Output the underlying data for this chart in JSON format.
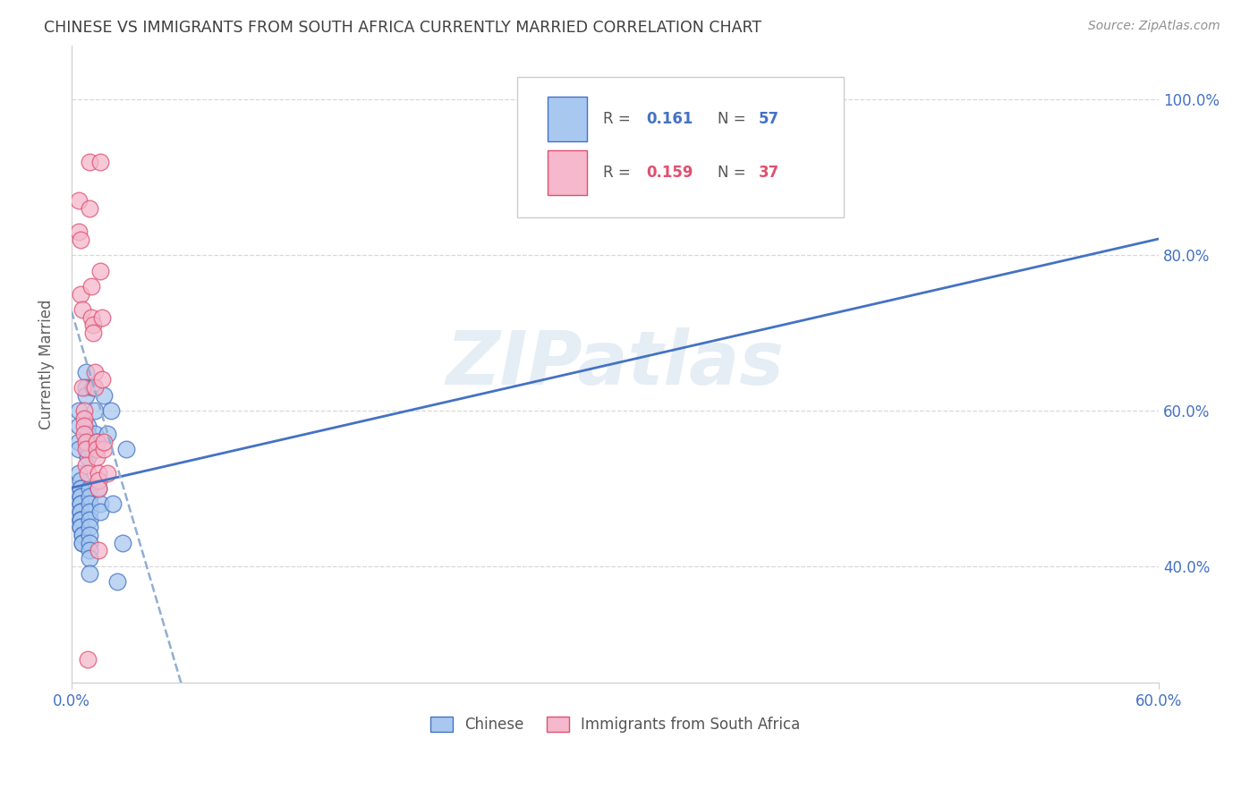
{
  "title": "CHINESE VS IMMIGRANTS FROM SOUTH AFRICA CURRENTLY MARRIED CORRELATION CHART",
  "source": "Source: ZipAtlas.com",
  "ylabel": "Currently Married",
  "xlim": [
    0.0,
    0.6
  ],
  "ylim": [
    0.25,
    1.07
  ],
  "watermark": "ZIPatlas",
  "blue_color": "#a8c8f0",
  "pink_color": "#f5b8cc",
  "blue_line_color": "#4472c4",
  "pink_line_color": "#e05070",
  "blue_reg_color": "#4472c4",
  "dashed_reg_color": "#90aed0",
  "title_color": "#404040",
  "source_color": "#909090",
  "axis_label_color": "#4472c4",
  "grid_color": "#d8d8d8",
  "ytick_vals": [
    0.4,
    0.6,
    0.8,
    1.0
  ],
  "ytick_labels": [
    "40.0%",
    "60.0%",
    "80.0%",
    "100.0%"
  ],
  "xtick_vals": [
    0.0,
    0.6
  ],
  "xtick_labels": [
    "0.0%",
    "60.0%"
  ],
  "blue_scatter": [
    [
      0.004,
      0.56
    ],
    [
      0.004,
      0.6
    ],
    [
      0.004,
      0.58
    ],
    [
      0.004,
      0.55
    ],
    [
      0.004,
      0.52
    ],
    [
      0.005,
      0.51
    ],
    [
      0.005,
      0.5
    ],
    [
      0.005,
      0.5
    ],
    [
      0.005,
      0.49
    ],
    [
      0.005,
      0.49
    ],
    [
      0.005,
      0.48
    ],
    [
      0.005,
      0.48
    ],
    [
      0.005,
      0.47
    ],
    [
      0.005,
      0.47
    ],
    [
      0.005,
      0.46
    ],
    [
      0.005,
      0.46
    ],
    [
      0.005,
      0.46
    ],
    [
      0.005,
      0.45
    ],
    [
      0.005,
      0.45
    ],
    [
      0.006,
      0.44
    ],
    [
      0.006,
      0.44
    ],
    [
      0.006,
      0.43
    ],
    [
      0.006,
      0.43
    ],
    [
      0.008,
      0.65
    ],
    [
      0.008,
      0.63
    ],
    [
      0.008,
      0.62
    ],
    [
      0.009,
      0.58
    ],
    [
      0.009,
      0.57
    ],
    [
      0.009,
      0.56
    ],
    [
      0.009,
      0.55
    ],
    [
      0.009,
      0.54
    ],
    [
      0.01,
      0.5
    ],
    [
      0.01,
      0.49
    ],
    [
      0.01,
      0.48
    ],
    [
      0.01,
      0.47
    ],
    [
      0.01,
      0.46
    ],
    [
      0.01,
      0.45
    ],
    [
      0.01,
      0.44
    ],
    [
      0.01,
      0.43
    ],
    [
      0.01,
      0.42
    ],
    [
      0.01,
      0.41
    ],
    [
      0.01,
      0.39
    ],
    [
      0.012,
      0.63
    ],
    [
      0.013,
      0.6
    ],
    [
      0.013,
      0.57
    ],
    [
      0.014,
      0.56
    ],
    [
      0.014,
      0.55
    ],
    [
      0.015,
      0.5
    ],
    [
      0.016,
      0.48
    ],
    [
      0.016,
      0.47
    ],
    [
      0.018,
      0.62
    ],
    [
      0.02,
      0.57
    ],
    [
      0.022,
      0.6
    ],
    [
      0.023,
      0.48
    ],
    [
      0.025,
      0.38
    ],
    [
      0.028,
      0.43
    ],
    [
      0.03,
      0.55
    ]
  ],
  "pink_scatter": [
    [
      0.004,
      0.87
    ],
    [
      0.004,
      0.83
    ],
    [
      0.005,
      0.82
    ],
    [
      0.005,
      0.75
    ],
    [
      0.006,
      0.73
    ],
    [
      0.006,
      0.63
    ],
    [
      0.007,
      0.6
    ],
    [
      0.007,
      0.59
    ],
    [
      0.007,
      0.58
    ],
    [
      0.007,
      0.57
    ],
    [
      0.008,
      0.56
    ],
    [
      0.008,
      0.55
    ],
    [
      0.008,
      0.53
    ],
    [
      0.009,
      0.52
    ],
    [
      0.009,
      0.28
    ],
    [
      0.01,
      0.92
    ],
    [
      0.01,
      0.86
    ],
    [
      0.011,
      0.76
    ],
    [
      0.011,
      0.72
    ],
    [
      0.012,
      0.71
    ],
    [
      0.012,
      0.7
    ],
    [
      0.013,
      0.65
    ],
    [
      0.013,
      0.63
    ],
    [
      0.014,
      0.56
    ],
    [
      0.014,
      0.55
    ],
    [
      0.014,
      0.54
    ],
    [
      0.015,
      0.52
    ],
    [
      0.015,
      0.51
    ],
    [
      0.015,
      0.5
    ],
    [
      0.015,
      0.42
    ],
    [
      0.016,
      0.92
    ],
    [
      0.016,
      0.78
    ],
    [
      0.017,
      0.72
    ],
    [
      0.017,
      0.64
    ],
    [
      0.018,
      0.55
    ],
    [
      0.018,
      0.56
    ],
    [
      0.02,
      0.52
    ]
  ]
}
